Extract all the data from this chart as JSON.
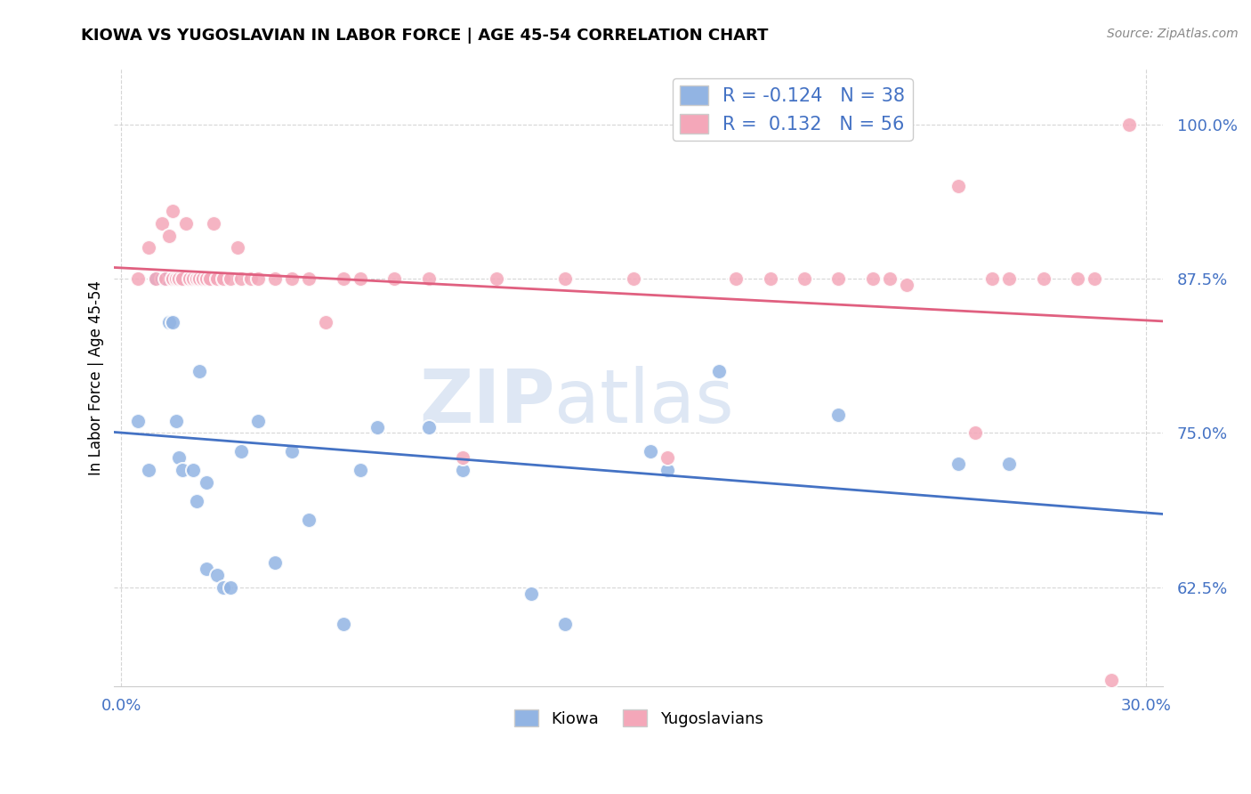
{
  "title": "KIOWA VS YUGOSLAVIAN IN LABOR FORCE | AGE 45-54 CORRELATION CHART",
  "source": "Source: ZipAtlas.com",
  "ylabel": "In Labor Force | Age 45-54",
  "ytick_labels": [
    "62.5%",
    "75.0%",
    "87.5%",
    "100.0%"
  ],
  "ytick_values": [
    0.625,
    0.75,
    0.875,
    1.0
  ],
  "xtick_labels": [
    "0.0%",
    "30.0%"
  ],
  "xtick_values": [
    0.0,
    0.3
  ],
  "xlim": [
    -0.002,
    0.305
  ],
  "ylim": [
    0.545,
    1.045
  ],
  "kiowa_color": "#92b4e3",
  "yugo_color": "#f4a7b9",
  "kiowa_line_color": "#4472c4",
  "yugo_line_color": "#e06080",
  "kiowa_R": -0.124,
  "kiowa_N": 38,
  "yugo_R": 0.132,
  "yugo_N": 56,
  "watermark_zip": "ZIP",
  "watermark_atlas": "atlas",
  "kiowa_x": [
    0.005,
    0.008,
    0.01,
    0.012,
    0.014,
    0.015,
    0.015,
    0.016,
    0.017,
    0.018,
    0.019,
    0.02,
    0.021,
    0.022,
    0.023,
    0.025,
    0.025,
    0.028,
    0.03,
    0.032,
    0.035,
    0.04,
    0.045,
    0.05,
    0.055,
    0.065,
    0.07,
    0.075,
    0.09,
    0.1,
    0.12,
    0.13,
    0.155,
    0.16,
    0.175,
    0.21,
    0.245,
    0.26
  ],
  "kiowa_y": [
    0.76,
    0.72,
    0.875,
    0.875,
    0.84,
    0.875,
    0.84,
    0.76,
    0.73,
    0.72,
    0.875,
    0.875,
    0.72,
    0.695,
    0.8,
    0.71,
    0.64,
    0.635,
    0.625,
    0.625,
    0.735,
    0.76,
    0.645,
    0.735,
    0.68,
    0.595,
    0.72,
    0.755,
    0.755,
    0.72,
    0.62,
    0.595,
    0.735,
    0.72,
    0.8,
    0.765,
    0.725,
    0.725
  ],
  "yugo_x": [
    0.005,
    0.008,
    0.01,
    0.012,
    0.013,
    0.014,
    0.015,
    0.015,
    0.016,
    0.017,
    0.018,
    0.019,
    0.02,
    0.021,
    0.022,
    0.023,
    0.024,
    0.025,
    0.026,
    0.027,
    0.028,
    0.03,
    0.032,
    0.034,
    0.035,
    0.038,
    0.04,
    0.045,
    0.05,
    0.055,
    0.06,
    0.065,
    0.07,
    0.08,
    0.09,
    0.1,
    0.11,
    0.13,
    0.15,
    0.16,
    0.18,
    0.19,
    0.2,
    0.21,
    0.22,
    0.225,
    0.23,
    0.245,
    0.25,
    0.255,
    0.26,
    0.27,
    0.28,
    0.285,
    0.29,
    0.295
  ],
  "yugo_y": [
    0.875,
    0.9,
    0.875,
    0.92,
    0.875,
    0.91,
    0.875,
    0.93,
    0.875,
    0.875,
    0.875,
    0.92,
    0.875,
    0.875,
    0.875,
    0.875,
    0.875,
    0.875,
    0.875,
    0.92,
    0.875,
    0.875,
    0.875,
    0.9,
    0.875,
    0.875,
    0.875,
    0.875,
    0.875,
    0.875,
    0.84,
    0.875,
    0.875,
    0.875,
    0.875,
    0.73,
    0.875,
    0.875,
    0.875,
    0.73,
    0.875,
    0.875,
    0.875,
    0.875,
    0.875,
    0.875,
    0.87,
    0.95,
    0.75,
    0.875,
    0.875,
    0.875,
    0.875,
    0.875,
    0.55,
    1.0
  ]
}
